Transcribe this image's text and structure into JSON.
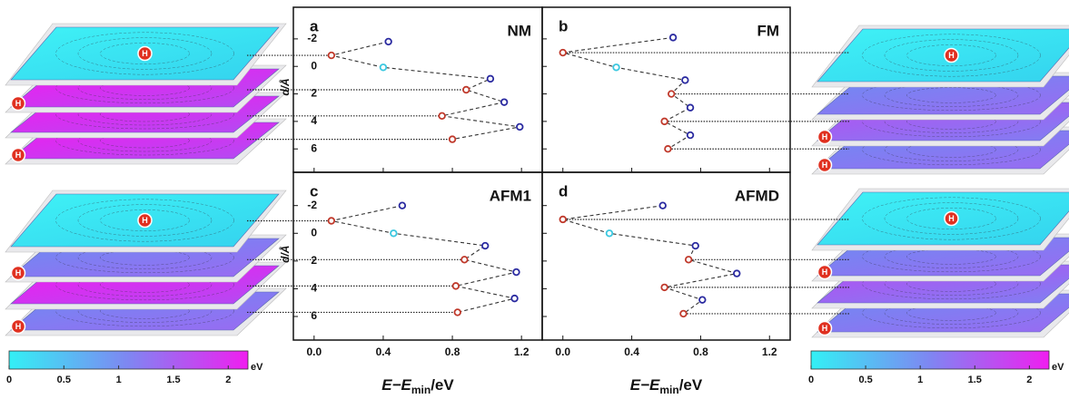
{
  "marker_label": "H",
  "colorbars": [
    {
      "ticks": [
        0,
        0.5,
        1,
        1.5,
        2
      ],
      "lim": [
        0,
        2.18
      ],
      "unit": "eV",
      "colors": [
        "#33f0f5",
        "#7f86f2",
        "#f01ef0"
      ]
    },
    {
      "ticks": [
        0,
        0.5,
        1,
        1.5,
        2
      ],
      "lim": [
        0,
        2.18
      ],
      "unit": "eV",
      "colors": [
        "#33f0f5",
        "#7f86f2",
        "#f01ef0"
      ]
    }
  ],
  "chart_data": [
    {
      "type": "scatter",
      "panel": "a",
      "title": "NM",
      "x": [
        0.43,
        0.1,
        0.4,
        1.02,
        0.88,
        1.1,
        0.74,
        1.19,
        0.8
      ],
      "values": [
        -1.8,
        -0.8,
        0.07,
        0.9,
        1.7,
        2.6,
        3.6,
        4.4,
        5.3
      ],
      "point_colors": [
        "#2a2aa0",
        "#c0392b",
        "#3cc8e0",
        "#2a2aa0",
        "#c0392b",
        "#2a2aa0",
        "#c0392b",
        "#2a2aa0",
        "#c0392b"
      ],
      "line_color": "#333333",
      "xlim": [
        -0.12,
        1.32
      ],
      "ylim": [
        -4.3,
        7.7
      ],
      "y_inverted": true,
      "xticks": [
        {
          "value": 0,
          "label": "0.0"
        },
        {
          "value": 0.4,
          "label": "0.4"
        },
        {
          "value": 0.8,
          "label": "0.8"
        },
        {
          "value": 1.2,
          "label": "1.2"
        }
      ],
      "yticks": [
        -2,
        0,
        2,
        4,
        6
      ],
      "show_xtick_labels": false,
      "show_ytick_labels": true,
      "ylabel": "d/Å"
    },
    {
      "type": "scatter",
      "panel": "b",
      "title": "FM",
      "x": [
        0.64,
        0.0,
        0.31,
        0.71,
        0.63,
        0.74,
        0.59,
        0.74,
        0.61
      ],
      "values": [
        -2.1,
        -1.0,
        0.07,
        1.0,
        2.0,
        3.0,
        4.0,
        5.0,
        6.0
      ],
      "point_colors": [
        "#2a2aa0",
        "#c0392b",
        "#3cc8e0",
        "#2a2aa0",
        "#c0392b",
        "#2a2aa0",
        "#c0392b",
        "#2a2aa0",
        "#c0392b"
      ],
      "line_color": "#333333",
      "xlim": [
        -0.12,
        1.32
      ],
      "ylim": [
        -4.3,
        7.7
      ],
      "y_inverted": true,
      "xticks": [
        {
          "value": 0,
          "label": "0.0"
        },
        {
          "value": 0.4,
          "label": "0.4"
        },
        {
          "value": 0.8,
          "label": "0.8"
        },
        {
          "value": 1.2,
          "label": "1.2"
        }
      ],
      "yticks": [
        -2,
        0,
        2,
        4,
        6
      ],
      "show_xtick_labels": false,
      "show_ytick_labels": false
    },
    {
      "type": "scatter",
      "panel": "c",
      "title": "AFM1",
      "x": [
        0.51,
        0.1,
        0.46,
        0.99,
        0.87,
        1.17,
        0.82,
        1.16,
        0.83
      ],
      "values": [
        -2.0,
        -0.9,
        0.0,
        0.9,
        1.9,
        2.8,
        3.8,
        4.7,
        5.7
      ],
      "point_colors": [
        "#2a2aa0",
        "#c0392b",
        "#3cc8e0",
        "#2a2aa0",
        "#c0392b",
        "#2a2aa0",
        "#c0392b",
        "#2a2aa0",
        "#c0392b"
      ],
      "line_color": "#333333",
      "xlim": [
        -0.12,
        1.32
      ],
      "ylim": [
        -4.4,
        7.7
      ],
      "y_inverted": true,
      "xticks": [
        {
          "value": 0,
          "label": "0.0"
        },
        {
          "value": 0.4,
          "label": "0.4"
        },
        {
          "value": 0.8,
          "label": "0.8"
        },
        {
          "value": 1.2,
          "label": "1.2"
        }
      ],
      "yticks": [
        -2,
        0,
        2,
        4,
        6
      ],
      "show_xtick_labels": true,
      "show_ytick_labels": true,
      "ylabel": "d/Å",
      "xlabel": [
        "E−E",
        "min",
        "/eV"
      ]
    },
    {
      "type": "scatter",
      "panel": "d",
      "title": "AFMD",
      "x": [
        0.58,
        0.0,
        0.27,
        0.77,
        0.73,
        1.01,
        0.59,
        0.81,
        0.7
      ],
      "values": [
        -2.0,
        -1.0,
        0.0,
        0.9,
        1.9,
        2.9,
        3.9,
        4.8,
        5.8
      ],
      "point_colors": [
        "#2a2aa0",
        "#c0392b",
        "#3cc8e0",
        "#2a2aa0",
        "#c0392b",
        "#2a2aa0",
        "#c0392b",
        "#2a2aa0",
        "#c0392b"
      ],
      "line_color": "#333333",
      "xlim": [
        -0.12,
        1.32
      ],
      "ylim": [
        -4.4,
        7.7
      ],
      "y_inverted": true,
      "xticks": [
        {
          "value": 0,
          "label": "0.0"
        },
        {
          "value": 0.4,
          "label": "0.4"
        },
        {
          "value": 0.8,
          "label": "0.8"
        },
        {
          "value": 1.2,
          "label": "1.2"
        }
      ],
      "yticks": [
        -2,
        0,
        2,
        4,
        6
      ],
      "show_xtick_labels": true,
      "show_ytick_labels": false,
      "xlabel": [
        "E−E",
        "min",
        "/eV"
      ]
    }
  ]
}
